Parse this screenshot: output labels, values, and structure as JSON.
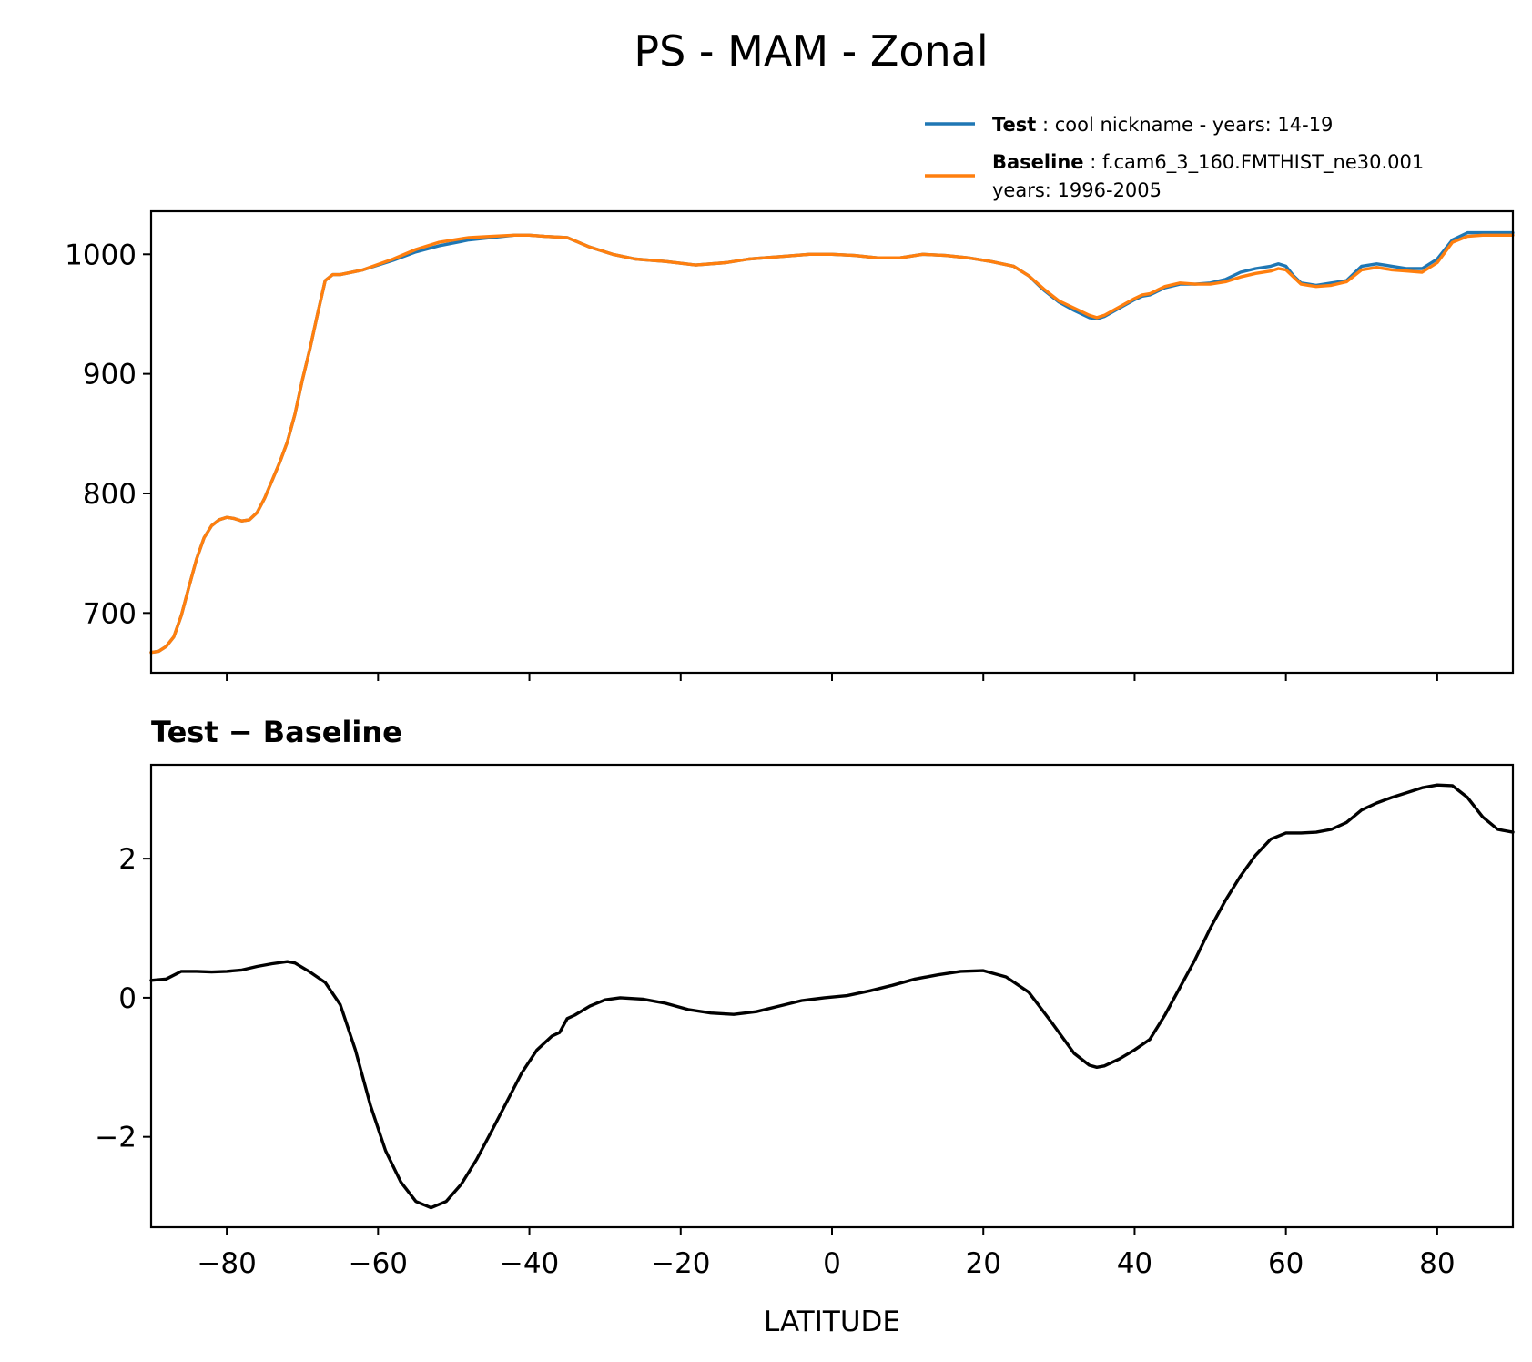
{
  "figure": {
    "title": "PS - MAM - Zonal"
  },
  "legend": {
    "entries": [
      {
        "label_bold": "Test",
        "label_rest": ": cool nickname - years: 14-19",
        "label_line2": "",
        "color": "#1f77b4"
      },
      {
        "label_bold": "Baseline",
        "label_rest": ": f.cam6_3_160.FMTHIST_ne30.001",
        "label_line2": "years: 1996-2005",
        "color": "#ff7f0e"
      }
    ]
  },
  "chart_data": [
    {
      "type": "line",
      "title": "",
      "xlabel": "",
      "ylabel": "",
      "xlim": [
        -90,
        90
      ],
      "ylim": [
        650,
        1036
      ],
      "yticks": [
        "700",
        "800",
        "900",
        "1000"
      ],
      "ytick_values": [
        700,
        800,
        900,
        1000
      ],
      "xtick_values": [
        -80,
        -60,
        -40,
        -20,
        0,
        20,
        40,
        60,
        80
      ],
      "xtick_labels_visible": false,
      "grid": false,
      "legend_placement": "upper-right, above axes",
      "x": [
        -90,
        -89,
        -88,
        -87,
        -86,
        -85,
        -84,
        -83,
        -82,
        -81,
        -80,
        -79,
        -78,
        -77,
        -76,
        -75,
        -74,
        -73,
        -72,
        -71,
        -70,
        -69,
        -68,
        -67,
        -66,
        -65,
        -62,
        -58,
        -55,
        -52,
        -48,
        -45,
        -42,
        -40,
        -38,
        -35,
        -32,
        -29,
        -26,
        -22,
        -18,
        -14,
        -11,
        -7,
        -3,
        0,
        3,
        6,
        9,
        12,
        15,
        18,
        21,
        24,
        26,
        28,
        30,
        32,
        34,
        35,
        36,
        38,
        40,
        41,
        42,
        44,
        46,
        48,
        50,
        52,
        54,
        56,
        58,
        59,
        60,
        61,
        62,
        63,
        64,
        66,
        68,
        70,
        72,
        74,
        76,
        78,
        80,
        82,
        84,
        86,
        88,
        90
      ],
      "series": [
        {
          "name": "Test",
          "color": "#1f77b4",
          "values": [
            667,
            668,
            672,
            680,
            698,
            722,
            745,
            763,
            773,
            778,
            780,
            779,
            777,
            778,
            784,
            796,
            811,
            826,
            843,
            866,
            895,
            921,
            950,
            978,
            983,
            983,
            987,
            995,
            1002,
            1007,
            1012,
            1014,
            1016,
            1016,
            1015,
            1014,
            1006,
            1000,
            996,
            994,
            991,
            993,
            996,
            998,
            1000,
            1000,
            999,
            997,
            997,
            1000,
            999,
            997,
            994,
            990,
            982,
            970,
            960,
            953,
            947,
            946,
            948,
            955,
            962,
            965,
            966,
            972,
            975,
            975,
            976,
            979,
            985,
            988,
            990,
            992,
            990,
            982,
            976,
            975,
            974,
            976,
            978,
            990,
            992,
            990,
            988,
            988,
            996,
            1012,
            1018,
            1018,
            1018,
            1018
          ]
        },
        {
          "name": "Baseline",
          "color": "#ff7f0e",
          "values": [
            667,
            668,
            672,
            680,
            698,
            722,
            745,
            763,
            773,
            778,
            780,
            779,
            777,
            778,
            784,
            796,
            811,
            826,
            843,
            866,
            895,
            921,
            950,
            978,
            983,
            983,
            987,
            996,
            1004,
            1010,
            1014,
            1015,
            1016,
            1016,
            1015,
            1014,
            1006,
            1000,
            996,
            994,
            991,
            993,
            996,
            998,
            1000,
            1000,
            999,
            997,
            997,
            1000,
            999,
            997,
            994,
            990,
            982,
            971,
            961,
            955,
            949,
            947,
            949,
            956,
            963,
            966,
            967,
            973,
            976,
            975,
            975,
            977,
            981,
            984,
            986,
            988,
            987,
            981,
            975,
            974,
            973,
            974,
            977,
            987,
            989,
            987,
            986,
            985,
            993,
            1010,
            1015,
            1016,
            1016,
            1016
          ]
        }
      ]
    },
    {
      "type": "line",
      "title": "Test − Baseline",
      "xlabel": "LATITUDE",
      "ylabel": "",
      "xlim": [
        -90,
        90
      ],
      "ylim": [
        -3.3,
        3.35
      ],
      "yticks": [
        "−2",
        "0",
        "2"
      ],
      "ytick_values": [
        -2,
        0,
        2
      ],
      "xticks": [
        "−80",
        "−60",
        "−40",
        "−20",
        "0",
        "20",
        "40",
        "60",
        "80"
      ],
      "xtick_values": [
        -80,
        -60,
        -40,
        -20,
        0,
        20,
        40,
        60,
        80
      ],
      "grid": false,
      "x": [
        -90,
        -88,
        -86,
        -84,
        -82,
        -80,
        -78,
        -76,
        -74,
        -72,
        -71,
        -69,
        -67,
        -65,
        -63,
        -61,
        -59,
        -57,
        -55,
        -53,
        -51,
        -49,
        -47,
        -45,
        -43,
        -41,
        -39,
        -37,
        -36,
        -35,
        -34,
        -32,
        -30,
        -28,
        -25,
        -22,
        -19,
        -16,
        -13,
        -10,
        -7,
        -4,
        -1,
        2,
        5,
        8,
        11,
        14,
        17,
        20,
        23,
        26,
        29,
        32,
        34,
        35,
        36,
        38,
        40,
        42,
        44,
        46,
        48,
        50,
        52,
        54,
        56,
        58,
        60,
        62,
        64,
        66,
        68,
        70,
        72,
        74,
        76,
        78,
        80,
        82,
        84,
        86,
        88,
        90
      ],
      "series": [
        {
          "name": "",
          "color": "#000000",
          "values": [
            0.25,
            0.27,
            0.38,
            0.38,
            0.37,
            0.38,
            0.4,
            0.45,
            0.49,
            0.52,
            0.5,
            0.37,
            0.22,
            -0.1,
            -0.75,
            -1.55,
            -2.2,
            -2.65,
            -2.93,
            -3.02,
            -2.93,
            -2.68,
            -2.33,
            -1.92,
            -1.5,
            -1.08,
            -0.75,
            -0.55,
            -0.5,
            -0.3,
            -0.25,
            -0.12,
            -0.03,
            0.0,
            -0.02,
            -0.08,
            -0.17,
            -0.22,
            -0.24,
            -0.2,
            -0.12,
            -0.04,
            0.0,
            0.03,
            0.1,
            0.18,
            0.27,
            0.33,
            0.38,
            0.39,
            0.3,
            0.08,
            -0.35,
            -0.8,
            -0.97,
            -1.0,
            -0.98,
            -0.88,
            -0.75,
            -0.6,
            -0.25,
            0.15,
            0.55,
            1.0,
            1.4,
            1.75,
            2.05,
            2.28,
            2.37,
            2.37,
            2.38,
            2.42,
            2.52,
            2.7,
            2.8,
            2.88,
            2.95,
            3.02,
            3.06,
            3.05,
            2.88,
            2.6,
            2.42,
            2.38
          ]
        }
      ]
    }
  ]
}
